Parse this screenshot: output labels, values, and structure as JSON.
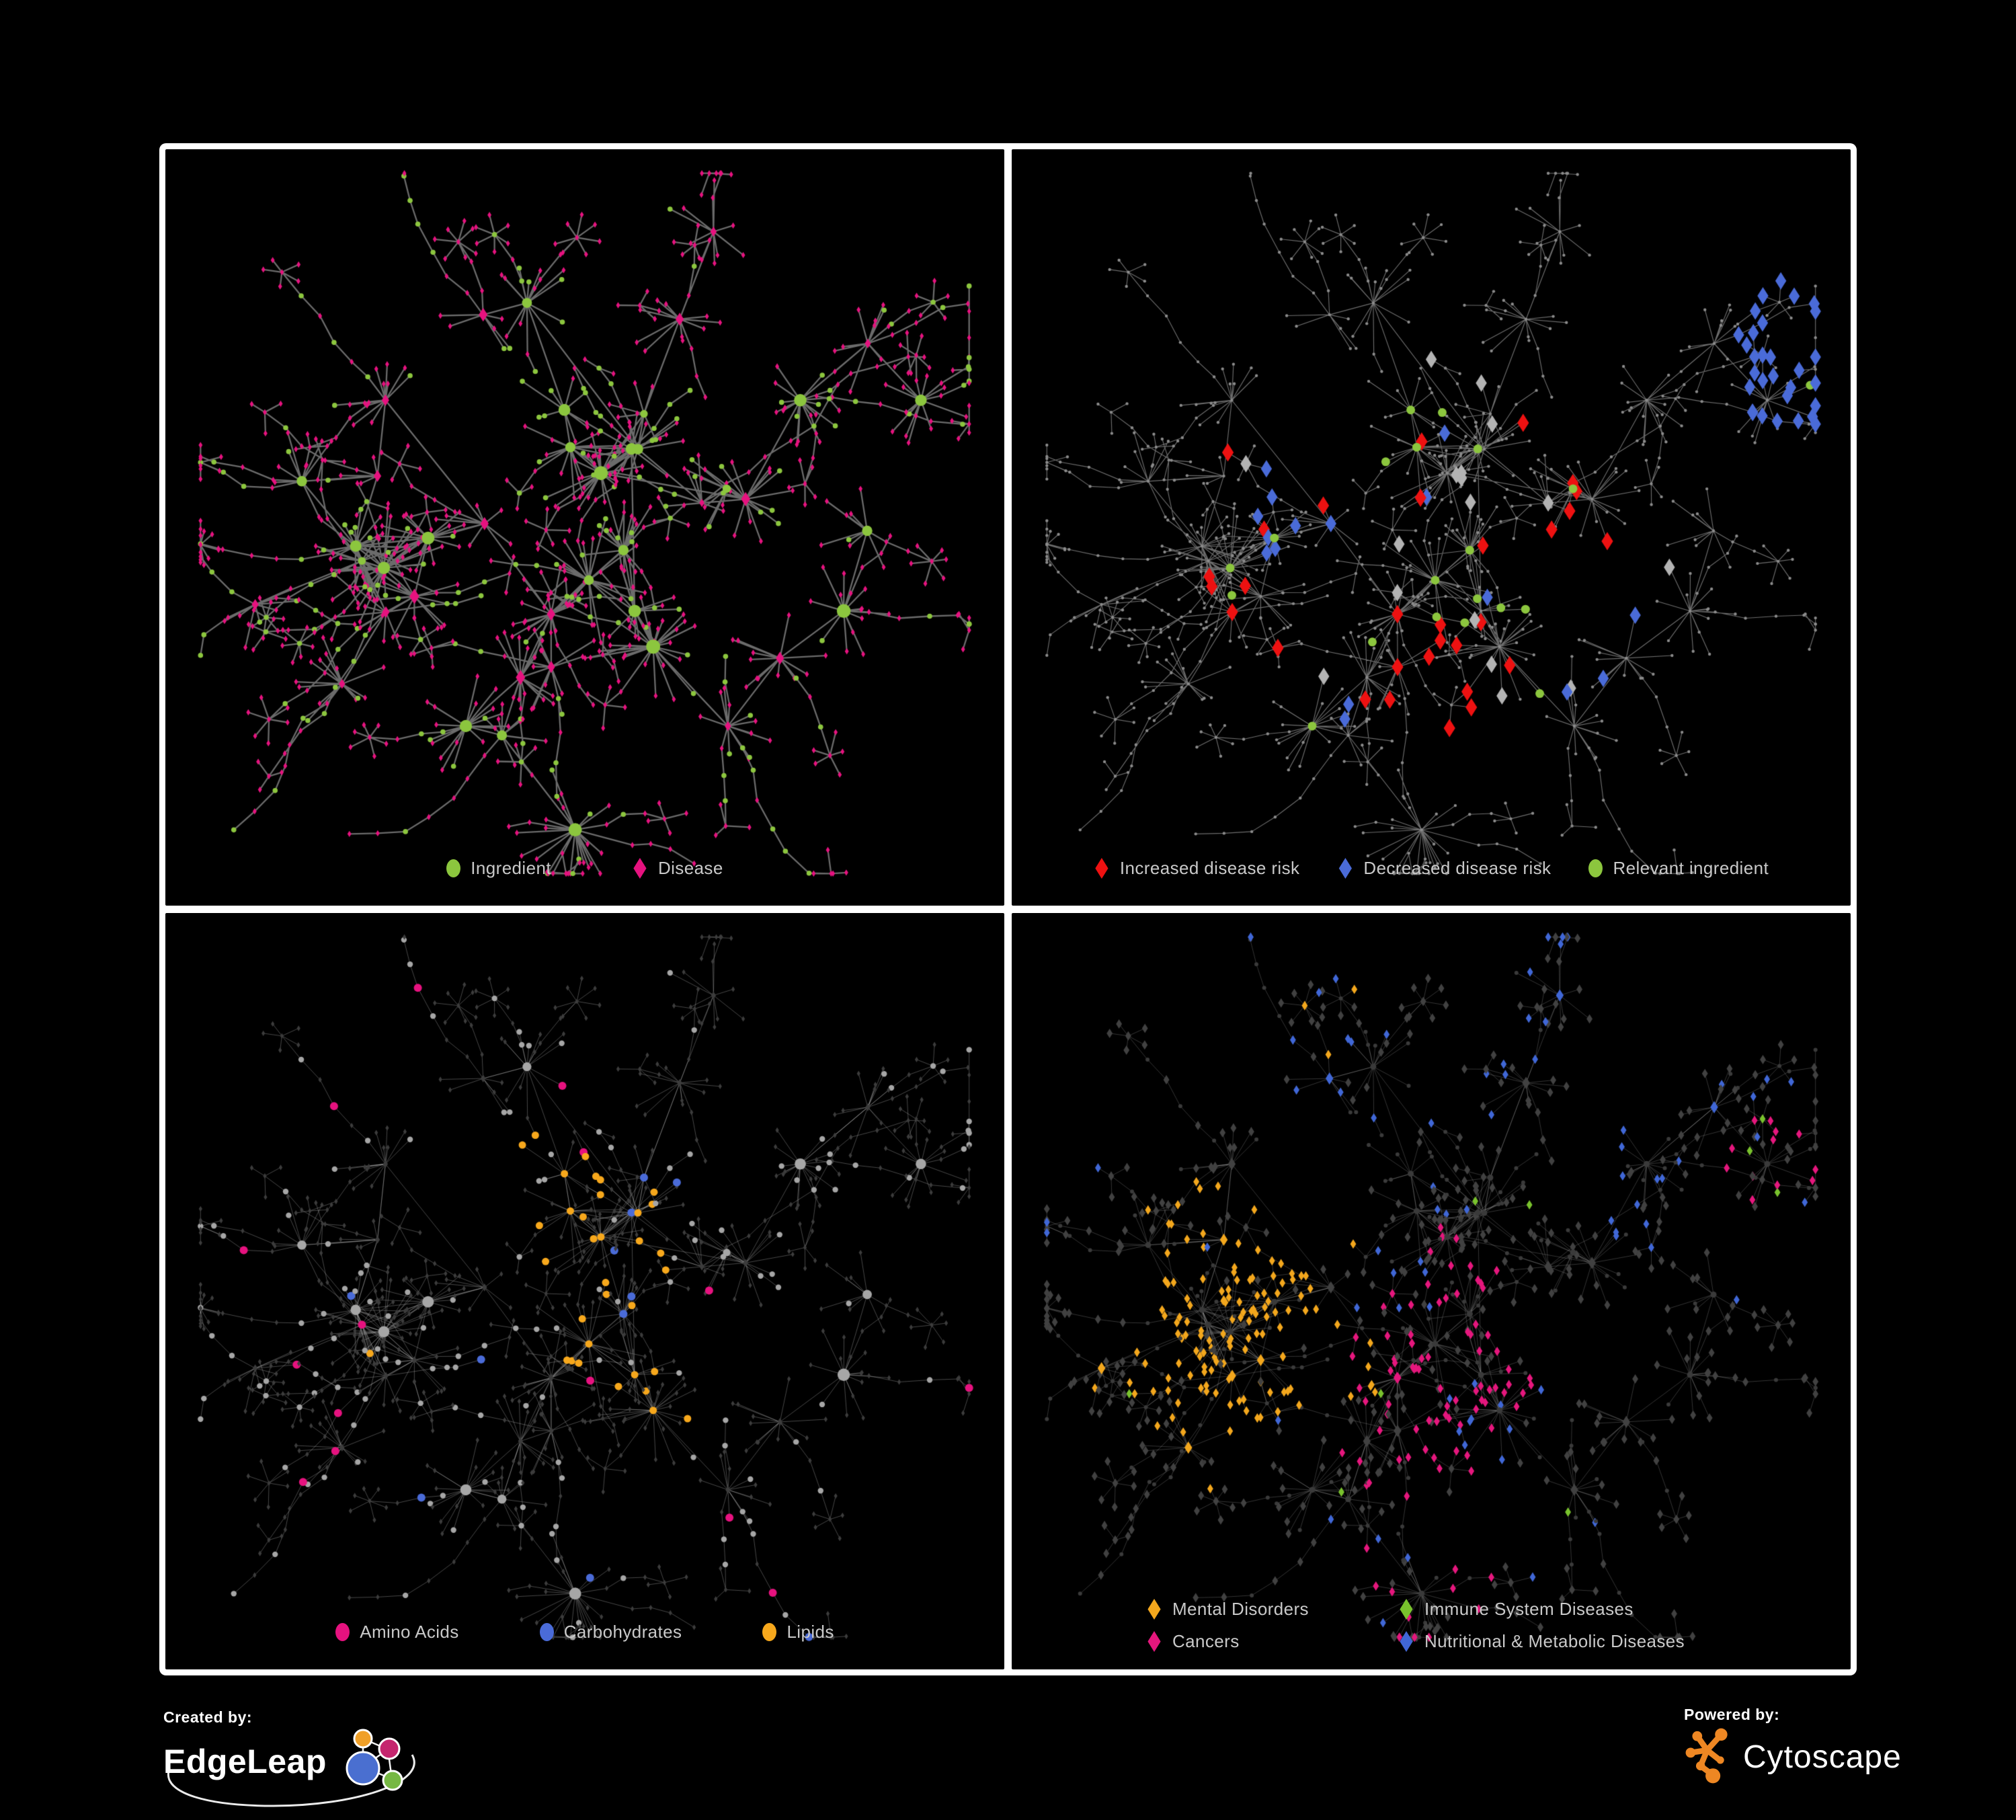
{
  "figure": {
    "background": "#000000",
    "frame_color": "#ffffff"
  },
  "panels": {
    "p1": {
      "legend": [
        {
          "label": "Ingredient",
          "shape": "circle",
          "color": "#8CC63E"
        },
        {
          "label": "Disease",
          "shape": "diamond",
          "color": "#E6127F"
        }
      ]
    },
    "p2": {
      "legend": [
        {
          "label": "Increased disease risk",
          "shape": "diamond",
          "color": "#EE1111"
        },
        {
          "label": "Decreased disease risk",
          "shape": "diamond",
          "color": "#4A6BD8"
        },
        {
          "label": "Relevant ingredient",
          "shape": "circle",
          "color": "#8CC63E"
        }
      ]
    },
    "p3": {
      "legend": [
        {
          "label": "Amino Acids",
          "shape": "circle",
          "color": "#E6127F"
        },
        {
          "label": "Carbohydrates",
          "shape": "circle",
          "color": "#4A6BD8"
        },
        {
          "label": "Lipids",
          "shape": "circle",
          "color": "#F7A81C"
        }
      ]
    },
    "p4": {
      "legend": [
        {
          "label": "Mental Disorders",
          "shape": "diamond",
          "color": "#F3A71D"
        },
        {
          "label": "Immune System Diseases",
          "shape": "diamond",
          "color": "#79C22D"
        },
        {
          "label": "Cancers",
          "shape": "diamond",
          "color": "#E5177D"
        },
        {
          "label": "Nutritional & Metabolic Diseases",
          "shape": "diamond",
          "color": "#4067D6"
        }
      ]
    }
  },
  "branding": {
    "created_by_label": "Created by:",
    "created_by_name": "EdgeLeap",
    "powered_by_label": "Powered by:",
    "powered_by_name": "Cytoscape",
    "cytoscape_orange": "#EE8723",
    "edgeleap_node_colors": [
      "#F0A028",
      "#C5256E",
      "#4A6FD0",
      "#76B843"
    ]
  },
  "network": {
    "seed": 42,
    "style": {
      "edge_p1": "#777777",
      "edge_p2": "#888888",
      "edge_p3": "#CFCFCF",
      "edge_p4": "#C8C8C8",
      "p2_node": "#8B8B8B",
      "p2_highlight_gray": "#B3B3B3",
      "p3_ingredient": "#A6A6A6",
      "p3_disease": "#3C3C3C",
      "p4_ingredient": "#3A3A3A",
      "p4_disease": "#414141"
    }
  }
}
